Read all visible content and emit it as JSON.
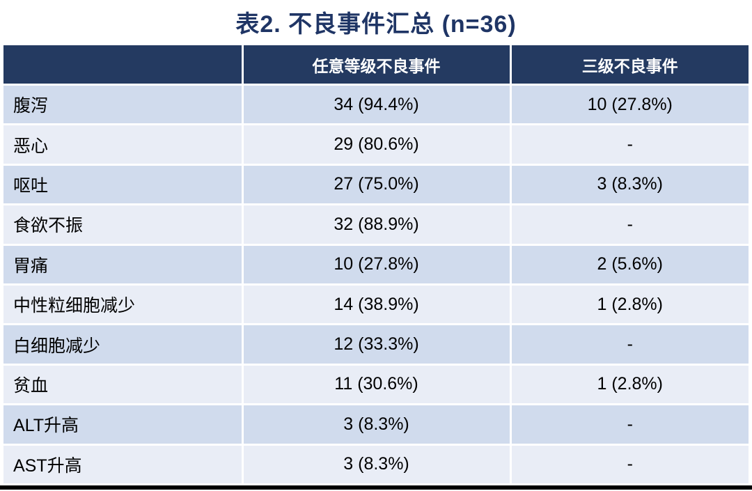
{
  "title": "表2. 不良事件汇总 (n=36)",
  "colors": {
    "title_text": "#1f3565",
    "header_background": "#243a61",
    "header_text": "#ffffff",
    "row_band_dark": "#d0dbed",
    "row_band_light": "#e9edf6",
    "body_text": "#000000",
    "bottom_bar": "#000000"
  },
  "table": {
    "columns": [
      "",
      "任意等级不良事件",
      "三级不良事件"
    ],
    "rows": [
      {
        "label": "腹泻",
        "any_grade": "34 (94.4%)",
        "grade3": "10 (27.8%)"
      },
      {
        "label": "恶心",
        "any_grade": "29 (80.6%)",
        "grade3": "-"
      },
      {
        "label": "呕吐",
        "any_grade": "27 (75.0%)",
        "grade3": "3 (8.3%)"
      },
      {
        "label": "食欲不振",
        "any_grade": "32 (88.9%)",
        "grade3": "-"
      },
      {
        "label": "胃痛",
        "any_grade": "10 (27.8%)",
        "grade3": "2 (5.6%)"
      },
      {
        "label": "中性粒细胞减少",
        "any_grade": "14 (38.9%)",
        "grade3": "1 (2.8%)"
      },
      {
        "label": "白细胞减少",
        "any_grade": "12 (33.3%)",
        "grade3": "-"
      },
      {
        "label": "贫血",
        "any_grade": "11 (30.6%)",
        "grade3": "1 (2.8%)"
      },
      {
        "label": "ALT升高",
        "any_grade": "3 (8.3%)",
        "grade3": "-"
      },
      {
        "label": "AST升高",
        "any_grade": "3 (8.3%)",
        "grade3": "-"
      }
    ]
  }
}
